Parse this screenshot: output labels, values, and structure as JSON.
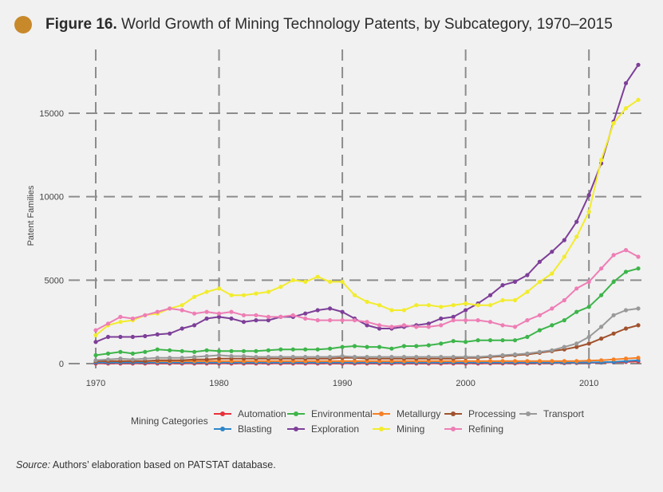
{
  "figure": {
    "label": "Figure 16.",
    "title": "World Growth of Mining Technology Patents, by Subcategory, 1970–2015",
    "accent_color": "#c8892b"
  },
  "source": {
    "label": "Source:",
    "text": "Authors’ elaboration based on PATSTAT database."
  },
  "chart_data": {
    "type": "line",
    "ylabel": "Patent Families",
    "xlabel": "",
    "xlim": [
      1970,
      2014
    ],
    "ylim": [
      0,
      18200
    ],
    "x_ticks": [
      1970,
      1980,
      1990,
      2000,
      2010
    ],
    "y_ticks": [
      0,
      5000,
      10000,
      15000
    ],
    "grid": "dashed",
    "legend_title": "Mining Categories",
    "legend_placement": "bottom",
    "x": [
      1970,
      1971,
      1972,
      1973,
      1974,
      1975,
      1976,
      1977,
      1978,
      1979,
      1980,
      1981,
      1982,
      1983,
      1984,
      1985,
      1986,
      1987,
      1988,
      1989,
      1990,
      1991,
      1992,
      1993,
      1994,
      1995,
      1996,
      1997,
      1998,
      1999,
      2000,
      2001,
      2002,
      2003,
      2004,
      2005,
      2006,
      2007,
      2008,
      2009,
      2010,
      2011,
      2012,
      2013,
      2014
    ],
    "series": [
      {
        "name": "Automation",
        "color": "#e8303a",
        "values": [
          10,
          10,
          10,
          10,
          10,
          10,
          10,
          10,
          10,
          10,
          10,
          10,
          10,
          10,
          10,
          10,
          10,
          10,
          10,
          10,
          10,
          10,
          10,
          10,
          10,
          10,
          10,
          10,
          10,
          10,
          10,
          10,
          15,
          15,
          20,
          20,
          25,
          30,
          35,
          40,
          50,
          60,
          80,
          100,
          130
        ]
      },
      {
        "name": "Blasting",
        "color": "#2e86c9",
        "values": [
          60,
          60,
          60,
          60,
          60,
          60,
          60,
          60,
          60,
          60,
          60,
          60,
          60,
          60,
          60,
          60,
          60,
          60,
          60,
          60,
          60,
          60,
          60,
          60,
          60,
          60,
          60,
          60,
          60,
          60,
          60,
          60,
          60,
          60,
          60,
          60,
          60,
          60,
          60,
          60,
          70,
          80,
          100,
          150,
          200
        ]
      },
      {
        "name": "Environmental",
        "color": "#3db54a",
        "values": [
          500,
          600,
          700,
          600,
          700,
          850,
          800,
          750,
          700,
          800,
          750,
          750,
          750,
          750,
          800,
          850,
          850,
          850,
          850,
          900,
          1000,
          1050,
          1000,
          1000,
          900,
          1050,
          1050,
          1100,
          1200,
          1350,
          1300,
          1400,
          1400,
          1400,
          1400,
          1600,
          2000,
          2300,
          2600,
          3100,
          3400,
          4100,
          4900,
          5500,
          5700
        ]
      },
      {
        "name": "Exploration",
        "color": "#7d3f98",
        "values": [
          1300,
          1600,
          1600,
          1600,
          1650,
          1750,
          1800,
          2100,
          2300,
          2700,
          2800,
          2700,
          2500,
          2600,
          2600,
          2800,
          2800,
          3000,
          3200,
          3300,
          3100,
          2700,
          2300,
          2100,
          2100,
          2200,
          2300,
          2400,
          2700,
          2800,
          3200,
          3600,
          4100,
          4700,
          4900,
          5300,
          6100,
          6700,
          7400,
          8500,
          10100,
          12000,
          14500,
          16800,
          17900
        ]
      },
      {
        "name": "Metallurgy",
        "color": "#f58025",
        "values": [
          150,
          150,
          150,
          150,
          150,
          150,
          150,
          150,
          150,
          150,
          150,
          150,
          150,
          150,
          150,
          150,
          150,
          150,
          150,
          150,
          150,
          150,
          150,
          150,
          150,
          150,
          150,
          150,
          150,
          150,
          150,
          150,
          150,
          150,
          150,
          150,
          150,
          150,
          150,
          150,
          180,
          200,
          250,
          300,
          350
        ]
      },
      {
        "name": "Mining",
        "color": "#f2ec2c",
        "values": [
          1700,
          2300,
          2500,
          2600,
          2900,
          3000,
          3300,
          3500,
          4000,
          4300,
          4500,
          4100,
          4100,
          4200,
          4300,
          4600,
          5000,
          4900,
          5200,
          4900,
          4900,
          4100,
          3700,
          3500,
          3200,
          3200,
          3500,
          3500,
          3400,
          3500,
          3600,
          3500,
          3500,
          3800,
          3800,
          4300,
          4900,
          5400,
          6400,
          7600,
          9100,
          12200,
          14400,
          15300,
          15800
        ]
      },
      {
        "name": "Processing",
        "color": "#a0522d",
        "values": [
          150,
          150,
          150,
          150,
          150,
          200,
          200,
          200,
          250,
          250,
          300,
          300,
          300,
          300,
          300,
          300,
          300,
          300,
          300,
          300,
          350,
          350,
          300,
          300,
          300,
          300,
          300,
          300,
          300,
          300,
          350,
          350,
          400,
          450,
          500,
          550,
          650,
          750,
          850,
          1000,
          1200,
          1500,
          1800,
          2100,
          2300
        ]
      },
      {
        "name": "Refining",
        "color": "#ee7eb5",
        "values": [
          2000,
          2400,
          2800,
          2700,
          2900,
          3100,
          3300,
          3200,
          3000,
          3100,
          3000,
          3100,
          2900,
          2900,
          2800,
          2800,
          2900,
          2700,
          2600,
          2600,
          2600,
          2600,
          2500,
          2300,
          2200,
          2300,
          2200,
          2200,
          2300,
          2600,
          2600,
          2600,
          2500,
          2300,
          2200,
          2600,
          2900,
          3300,
          3800,
          4500,
          4900,
          5700,
          6500,
          6800,
          6400
        ]
      },
      {
        "name": "Transport",
        "color": "#999999",
        "values": [
          200,
          250,
          300,
          250,
          300,
          350,
          350,
          350,
          400,
          450,
          500,
          450,
          450,
          400,
          400,
          400,
          400,
          400,
          400,
          400,
          450,
          400,
          400,
          400,
          400,
          400,
          400,
          400,
          400,
          400,
          400,
          400,
          450,
          500,
          550,
          600,
          700,
          800,
          1000,
          1200,
          1600,
          2200,
          2900,
          3200,
          3300
        ]
      }
    ]
  }
}
